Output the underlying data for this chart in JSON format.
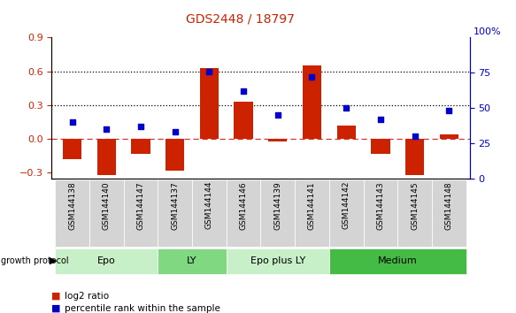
{
  "title": "GDS2448 / 18797",
  "samples": [
    "GSM144138",
    "GSM144140",
    "GSM144147",
    "GSM144137",
    "GSM144144",
    "GSM144146",
    "GSM144139",
    "GSM144141",
    "GSM144142",
    "GSM144143",
    "GSM144145",
    "GSM144148"
  ],
  "log2_ratio": [
    -0.18,
    -0.32,
    -0.13,
    -0.28,
    0.63,
    0.33,
    -0.02,
    0.65,
    0.12,
    -0.13,
    -0.32,
    0.04
  ],
  "percentile_rank": [
    40,
    35,
    37,
    33,
    76,
    62,
    45,
    72,
    50,
    42,
    30,
    48
  ],
  "groups": [
    {
      "label": "Epo",
      "start": 0,
      "end": 3,
      "color": "#c8f0c8"
    },
    {
      "label": "LY",
      "start": 3,
      "end": 5,
      "color": "#80d880"
    },
    {
      "label": "Epo plus LY",
      "start": 5,
      "end": 8,
      "color": "#c8f0c8"
    },
    {
      "label": "Medium",
      "start": 8,
      "end": 12,
      "color": "#44bb44"
    }
  ],
  "bar_color": "#cc2200",
  "dot_color": "#0000cc",
  "ylim_left": [
    -0.35,
    0.9
  ],
  "ylim_right": [
    0,
    100
  ],
  "yticks_left": [
    -0.3,
    0.0,
    0.3,
    0.6,
    0.9
  ],
  "yticks_right": [
    0,
    25,
    50,
    75,
    100
  ],
  "hline_vals": [
    0.3,
    0.6
  ],
  "zero_line_color": "#cc0000",
  "title_color": "#cc2200"
}
